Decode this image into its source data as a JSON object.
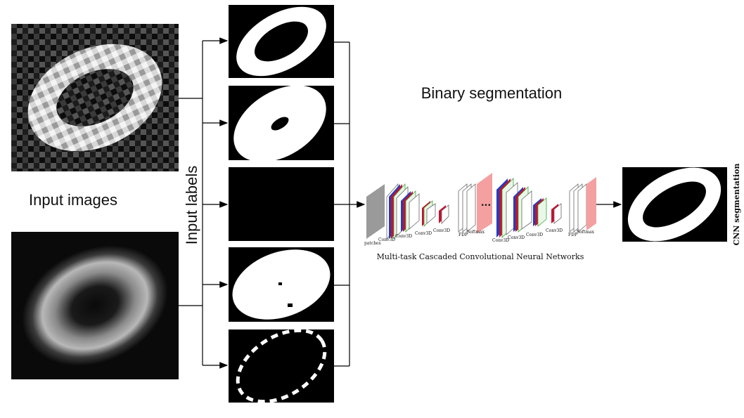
{
  "labels": {
    "input_images": "Input images",
    "input_labels": "Input labels",
    "binary_segmentation": "Binary segmentation",
    "network_caption": "Multi-task Cascaded Convolutional Neural Networks",
    "cnn_segmentation": "CNN segmentation"
  },
  "network_layers": {
    "patches": "patches",
    "conv3d": "Conv3D",
    "fdp": "FDP",
    "softmax": "Softmax",
    "ellipsis": "..."
  },
  "colors": {
    "background": "#ffffff",
    "mask_black": "#000000",
    "mask_white": "#ffffff",
    "layer_red": "#c8102e",
    "layer_blue": "#1f3fbf",
    "layer_green": "#3aa83a",
    "layer_pink": "#f4a0a0",
    "layer_gray": "#9a9a9a"
  }
}
